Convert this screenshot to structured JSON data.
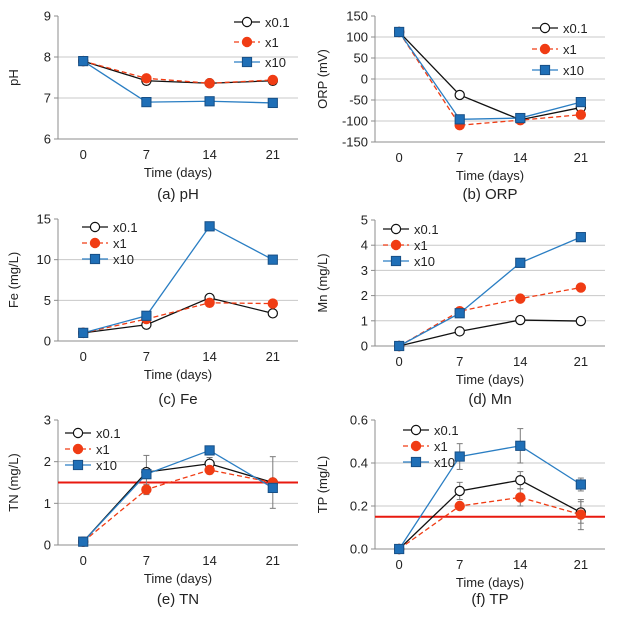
{
  "chart_data": [
    {
      "id": "a",
      "type": "line",
      "caption": "(a) pH",
      "xlabel": "Time (days)",
      "ylabel": "pH",
      "x": [
        0,
        7,
        14,
        21
      ],
      "xticks": [
        "0",
        "7",
        "14",
        "21"
      ],
      "ylim": [
        6,
        9
      ],
      "yticks": [
        6,
        7,
        8,
        9
      ],
      "ytick_labels": [
        "6",
        "7",
        "8",
        "9"
      ],
      "gridlines": [
        7,
        8
      ],
      "series": [
        {
          "name": "x0.1",
          "values": [
            7.9,
            7.42,
            7.36,
            7.42
          ]
        },
        {
          "name": "x1",
          "values": [
            7.9,
            7.48,
            7.36,
            7.44
          ]
        },
        {
          "name": "x10",
          "values": [
            7.9,
            6.9,
            6.92,
            6.88
          ]
        }
      ]
    },
    {
      "id": "b",
      "type": "line",
      "caption": "(b) ORP",
      "xlabel": "Time (days)",
      "ylabel": "ORP (mV)",
      "x": [
        0,
        7,
        14,
        21
      ],
      "xticks": [
        "0",
        "7",
        "14",
        "21"
      ],
      "ylim": [
        -150,
        150
      ],
      "yticks": [
        -150,
        -100,
        -50,
        0,
        50,
        100,
        150
      ],
      "ytick_labels": [
        "-150",
        "-100",
        "-50",
        "0",
        "50",
        "100",
        "150"
      ],
      "gridlines": [
        -100,
        -50,
        0,
        50,
        100
      ],
      "series": [
        {
          "name": "x0.1",
          "values": [
            112,
            -38,
            -97,
            -68
          ]
        },
        {
          "name": "x1",
          "values": [
            112,
            -110,
            -98,
            -85
          ],
          "errors": [
            0,
            5,
            0,
            10
          ]
        },
        {
          "name": "x10",
          "values": [
            112,
            -96,
            -93,
            -55
          ]
        }
      ]
    },
    {
      "id": "c",
      "type": "line",
      "caption": "(c) Fe",
      "xlabel": "Time (days)",
      "ylabel": "Fe (mg/L)",
      "x": [
        0,
        7,
        14,
        21
      ],
      "xticks": [
        "0",
        "7",
        "14",
        "21"
      ],
      "ylim": [
        0,
        15
      ],
      "yticks": [
        0,
        5,
        10,
        15
      ],
      "ytick_labels": [
        "0",
        "5",
        "10",
        "15"
      ],
      "gridlines": [
        5,
        10
      ],
      "series": [
        {
          "name": "x0.1",
          "values": [
            1.0,
            2.0,
            5.3,
            3.4
          ]
        },
        {
          "name": "x1",
          "values": [
            1.0,
            2.7,
            4.7,
            4.6
          ]
        },
        {
          "name": "x10",
          "values": [
            1.0,
            3.1,
            14.1,
            10.0
          ]
        }
      ]
    },
    {
      "id": "d",
      "type": "line",
      "caption": "(d) Mn",
      "xlabel": "Time (days)",
      "ylabel": "Mn (mg/L)",
      "x": [
        0,
        7,
        14,
        21
      ],
      "xticks": [
        "0",
        "7",
        "14",
        "21"
      ],
      "ylim": [
        0,
        5
      ],
      "yticks": [
        0,
        1,
        2,
        3,
        4,
        5
      ],
      "ytick_labels": [
        "0",
        "1",
        "2",
        "3",
        "4",
        "5"
      ],
      "gridlines": [
        1,
        2,
        3,
        4
      ],
      "series": [
        {
          "name": "x0.1",
          "values": [
            0,
            0.58,
            1.03,
            0.99
          ]
        },
        {
          "name": "x1",
          "values": [
            0,
            1.38,
            1.88,
            2.32
          ]
        },
        {
          "name": "x10",
          "values": [
            0,
            1.3,
            3.3,
            4.32
          ]
        }
      ]
    },
    {
      "id": "e",
      "type": "line",
      "caption": "(e) TN",
      "xlabel": "Time (days)",
      "ylabel": "TN (mg/L)",
      "x": [
        0,
        7,
        14,
        21
      ],
      "xticks": [
        "0",
        "7",
        "14",
        "21"
      ],
      "ylim": [
        0,
        3
      ],
      "yticks": [
        0,
        1,
        2,
        3
      ],
      "ytick_labels": [
        "0",
        "1",
        "2",
        "3"
      ],
      "gridlines": [
        1,
        2
      ],
      "reference_line": 1.5,
      "series": [
        {
          "name": "x0.1",
          "values": [
            0.08,
            1.75,
            1.95,
            1.5
          ],
          "errors": [
            0,
            0.4,
            0.15,
            0.62
          ]
        },
        {
          "name": "x1",
          "values": [
            0.08,
            1.33,
            1.8,
            1.5
          ],
          "errors": [
            0,
            0.12,
            0.1,
            0
          ]
        },
        {
          "name": "x10",
          "values": [
            0.08,
            1.7,
            2.27,
            1.37
          ],
          "errors": [
            0,
            0,
            0,
            0
          ]
        }
      ]
    },
    {
      "id": "f",
      "type": "line",
      "caption": "(f) TP",
      "xlabel": "Time (days)",
      "ylabel": "TP (mg/L)",
      "x": [
        0,
        7,
        14,
        21
      ],
      "xticks": [
        "0",
        "7",
        "14",
        "21"
      ],
      "ylim": [
        0,
        0.6
      ],
      "yticks": [
        0,
        0.2,
        0.4,
        0.6
      ],
      "ytick_labels": [
        "0.0",
        "0.2",
        "0.4",
        "0.6"
      ],
      "gridlines": [
        0.2,
        0.4
      ],
      "reference_line": 0.15,
      "series": [
        {
          "name": "x0.1",
          "values": [
            0,
            0.27,
            0.32,
            0.17
          ],
          "errors": [
            0,
            0.04,
            0.04,
            0.05
          ]
        },
        {
          "name": "x1",
          "values": [
            0,
            0.2,
            0.24,
            0.16
          ],
          "errors": [
            0,
            0,
            0.04,
            0.07
          ]
        },
        {
          "name": "x10",
          "values": [
            0,
            0.43,
            0.48,
            0.3
          ],
          "errors": [
            0,
            0.06,
            0.08,
            0.03
          ]
        }
      ]
    }
  ],
  "colors": {
    "x0.1": "#111111",
    "x1": "#f03c14",
    "x10": "#2a7ec3",
    "marker_x10": "#1f6fb7",
    "grid": "#c8c8c8",
    "axis": "#8c8c8c",
    "reference": "#e8190f"
  }
}
